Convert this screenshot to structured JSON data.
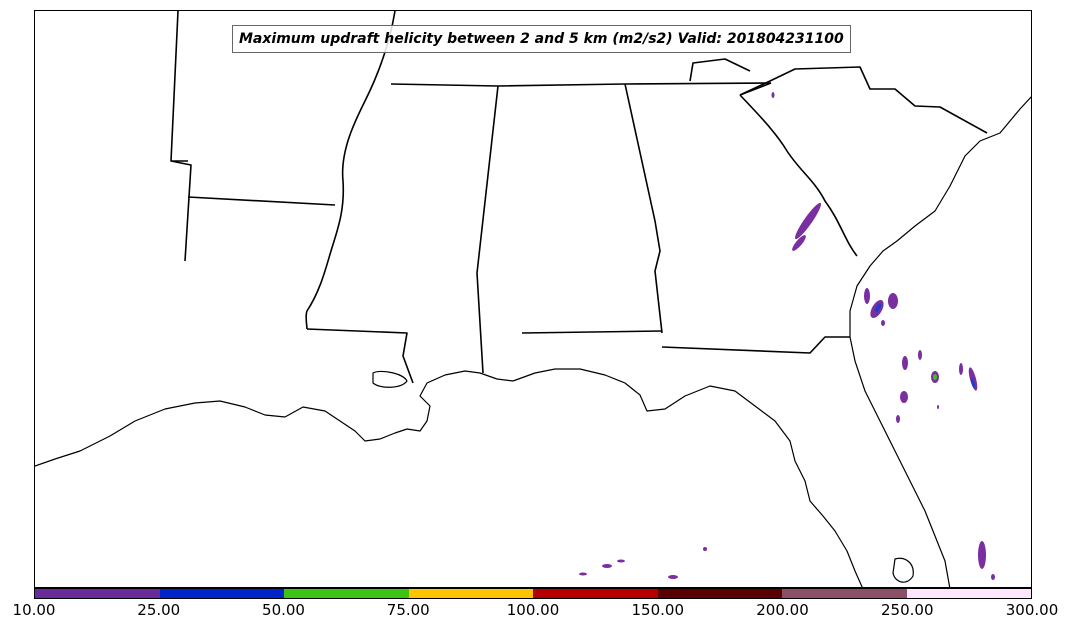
{
  "title": "Maximum updraft helicity between 2 and 5 km (m2/s2) Valid: 201804231100",
  "colorbar": {
    "tick_labels": [
      "10.00",
      "25.00",
      "50.00",
      "75.00",
      "100.00",
      "150.00",
      "200.00",
      "250.00",
      "300.00"
    ],
    "colors": [
      "#6a2b9a",
      "#0024c8",
      "#3cc414",
      "#ffc400",
      "#b40000",
      "#5a0000",
      "#8a5068",
      "#ffe6ff"
    ]
  },
  "map": {
    "land_fill": "#ffffff",
    "border_color": "#000000",
    "helicity_color_low": "#7a2fa0",
    "helicity_color_mid": "#1f3cd0",
    "helicity_color_high": "#3cc414"
  }
}
